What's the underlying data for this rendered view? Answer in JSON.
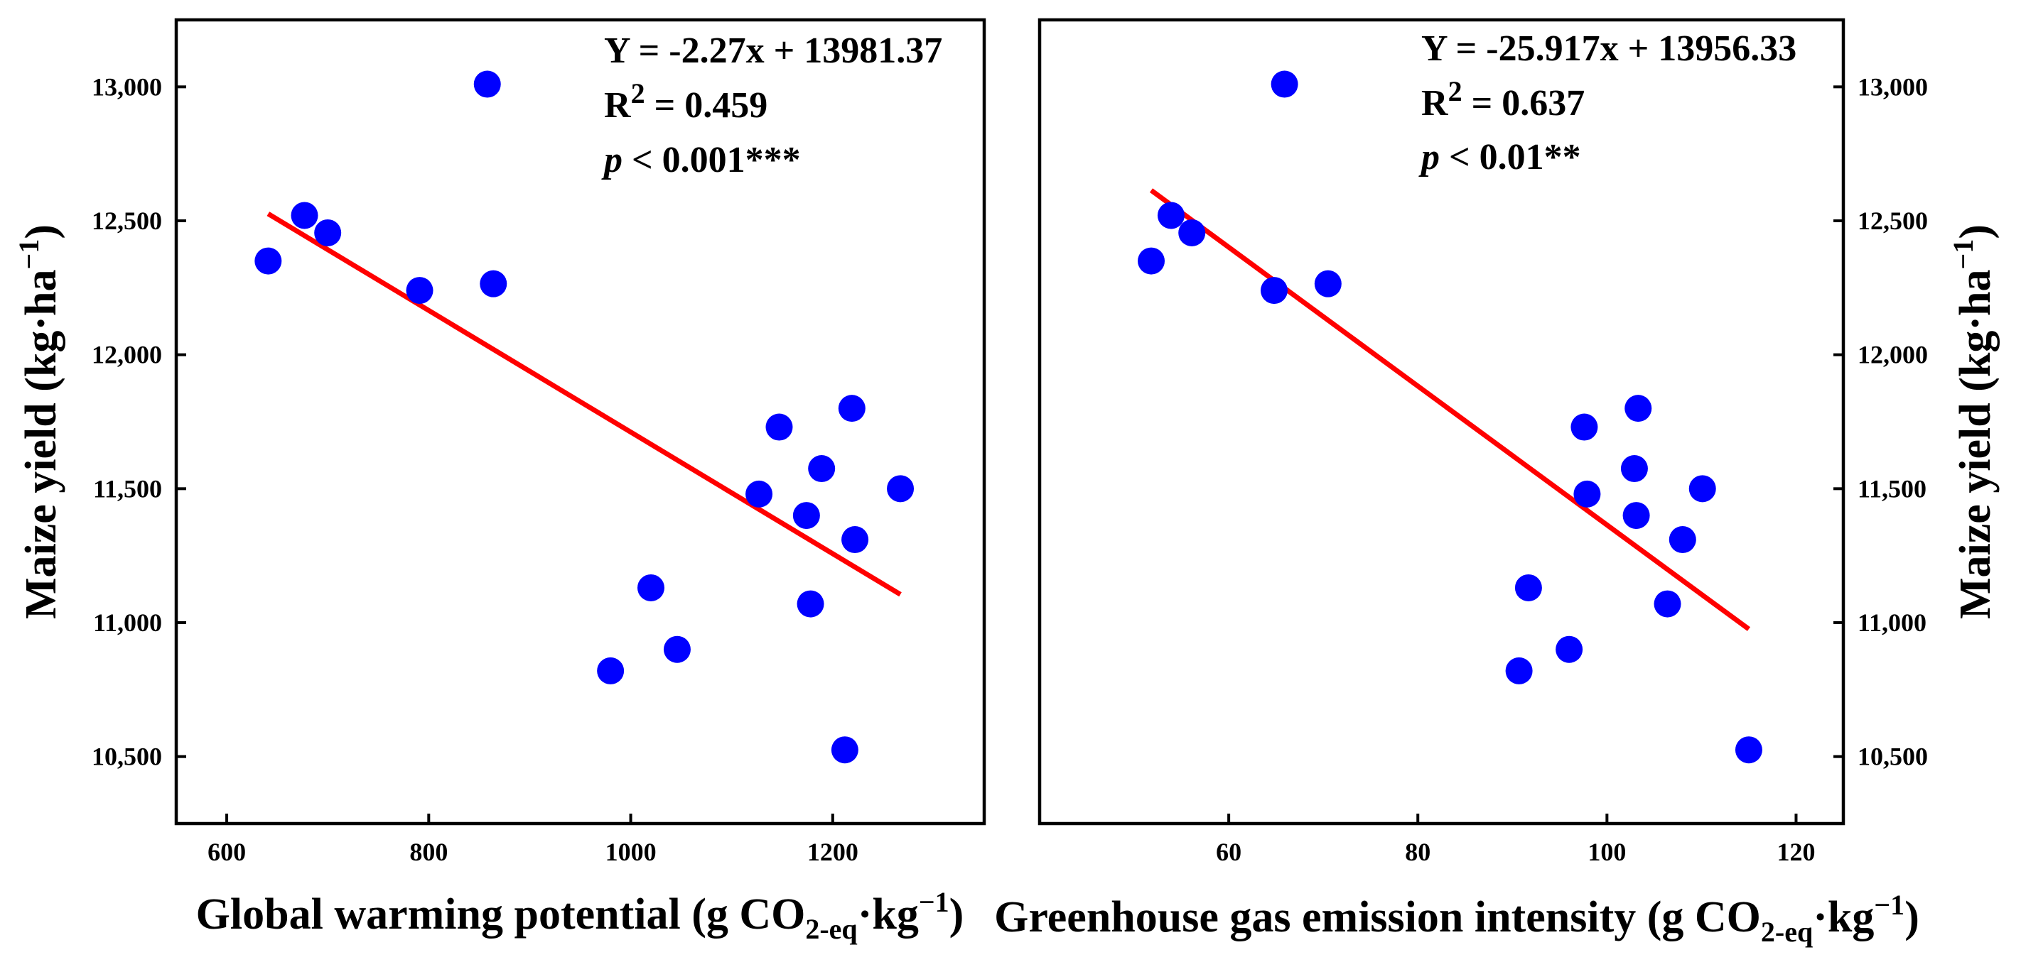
{
  "chart_data": [
    {
      "type": "scatter",
      "panel": "left",
      "xlabel_main": "Global warming potential (g CO",
      "xlabel_sub": "2-eq",
      "xlabel_mid": "·kg",
      "xlabel_sup": "−1",
      "xlabel_end": ")",
      "ylabel_main": "Maize yield (kg·ha",
      "ylabel_sup": "−1",
      "ylabel_end": ")",
      "y_axis_side": "left",
      "xlim": [
        550,
        1350
      ],
      "ylim": [
        10250,
        13250
      ],
      "xticks": [
        600,
        800,
        1000,
        1200
      ],
      "xtick_labels": [
        "600",
        "800",
        "1000",
        "1200"
      ],
      "yticks": [
        10500,
        11000,
        11500,
        12000,
        12500,
        13000
      ],
      "ytick_labels": [
        "10,500",
        "11,000",
        "11,500",
        "12,000",
        "12,500",
        "13,000"
      ],
      "points": [
        {
          "x": 641,
          "y": 12350
        },
        {
          "x": 677,
          "y": 12520
        },
        {
          "x": 700,
          "y": 12455
        },
        {
          "x": 791,
          "y": 12240
        },
        {
          "x": 858,
          "y": 13010
        },
        {
          "x": 864,
          "y": 12265
        },
        {
          "x": 980,
          "y": 10820
        },
        {
          "x": 1020,
          "y": 11130
        },
        {
          "x": 1046,
          "y": 10900
        },
        {
          "x": 1127,
          "y": 11480
        },
        {
          "x": 1147,
          "y": 11730
        },
        {
          "x": 1174,
          "y": 11400
        },
        {
          "x": 1178,
          "y": 11070
        },
        {
          "x": 1189,
          "y": 11575
        },
        {
          "x": 1212,
          "y": 10525
        },
        {
          "x": 1219,
          "y": 11800
        },
        {
          "x": 1222,
          "y": 11310
        },
        {
          "x": 1267,
          "y": 11500
        }
      ],
      "fit": {
        "slope": -2.27,
        "intercept": 13981.37,
        "x_range": [
          641,
          1267
        ]
      },
      "annotation": {
        "equation": "Y = -2.27x + 13981.37",
        "r2_label": "R",
        "r2_sup": "2",
        "r2_value": " = 0.459",
        "p_label": "p",
        "p_value": " < 0.001***"
      },
      "point_color": "#0000ff",
      "line_color": "#ff0000"
    },
    {
      "type": "scatter",
      "panel": "right",
      "xlabel_main": "Greenhouse gas emission intensity (g CO",
      "xlabel_sub": "2-eq",
      "xlabel_mid": "·kg",
      "xlabel_sup": "−1",
      "xlabel_end": ")",
      "ylabel_main": "Maize yield (kg·ha",
      "ylabel_sup": "−1",
      "ylabel_end": ")",
      "y_axis_side": "right",
      "xlim": [
        40,
        125
      ],
      "ylim": [
        10250,
        13250
      ],
      "xticks": [
        60,
        80,
        100,
        120
      ],
      "xtick_labels": [
        "60",
        "80",
        "100",
        "120"
      ],
      "yticks": [
        10500,
        11000,
        11500,
        12000,
        12500,
        13000
      ],
      "ytick_labels": [
        "10,500",
        "11,000",
        "11,500",
        "12,000",
        "12,500",
        "13,000"
      ],
      "points": [
        {
          "x": 51.8,
          "y": 12350
        },
        {
          "x": 53.9,
          "y": 12520
        },
        {
          "x": 56.1,
          "y": 12455
        },
        {
          "x": 64.8,
          "y": 12240
        },
        {
          "x": 65.9,
          "y": 13010
        },
        {
          "x": 70.5,
          "y": 12265
        },
        {
          "x": 90.7,
          "y": 10820
        },
        {
          "x": 91.7,
          "y": 11130
        },
        {
          "x": 96.0,
          "y": 10900
        },
        {
          "x": 97.6,
          "y": 11730
        },
        {
          "x": 97.9,
          "y": 11480
        },
        {
          "x": 102.9,
          "y": 11575
        },
        {
          "x": 103.1,
          "y": 11400
        },
        {
          "x": 103.3,
          "y": 11800
        },
        {
          "x": 106.4,
          "y": 11070
        },
        {
          "x": 108.0,
          "y": 11310
        },
        {
          "x": 110.1,
          "y": 11500
        },
        {
          "x": 115.0,
          "y": 10525
        }
      ],
      "fit": {
        "slope": -25.917,
        "intercept": 13956.33,
        "x_range": [
          51.8,
          115.0
        ]
      },
      "annotation": {
        "equation": "Y = -25.917x + 13956.33",
        "r2_label": "R",
        "r2_sup": "2",
        "r2_value": " = 0.637",
        "p_label": "p",
        "p_value": " < 0.01**"
      },
      "point_color": "#0000ff",
      "line_color": "#ff0000"
    }
  ]
}
